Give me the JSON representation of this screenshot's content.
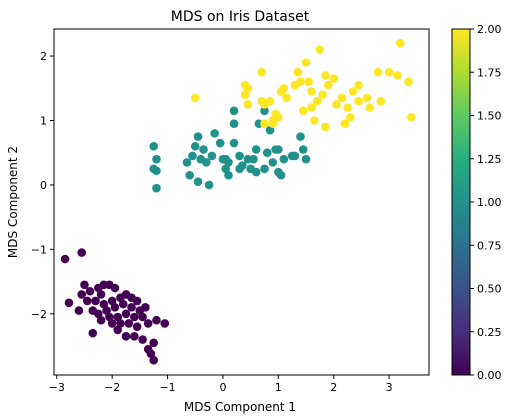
{
  "chart_data": {
    "type": "scatter",
    "title": "MDS on Iris Dataset",
    "xlabel": "MDS Component 1",
    "ylabel": "MDS Component 2",
    "xlim": [
      -3.05,
      3.72
    ],
    "ylim": [
      -2.95,
      2.42
    ],
    "xticks": [
      -3,
      -2,
      -1,
      0,
      1,
      2,
      3
    ],
    "xtick_labels": [
      "−3",
      "−2",
      "−1",
      "0",
      "1",
      "2",
      "3"
    ],
    "yticks": [
      -2,
      -1,
      0,
      1,
      2
    ],
    "ytick_labels": [
      "−2",
      "−1",
      "0",
      "1",
      "2"
    ],
    "grid": false,
    "colormap": "viridis",
    "colorbar": {
      "min": 0.0,
      "max": 2.0,
      "ticks": [
        0.0,
        0.25,
        0.5,
        0.75,
        1.0,
        1.25,
        1.5,
        1.75,
        2.0
      ],
      "tick_labels": [
        "0.00",
        "0.25",
        "0.50",
        "0.75",
        "1.00",
        "1.25",
        "1.50",
        "1.75",
        "2.00"
      ]
    },
    "series": [
      {
        "value": 0,
        "color": "#440154",
        "points": [
          [
            -2.85,
            -1.15
          ],
          [
            -2.55,
            -1.05
          ],
          [
            -2.78,
            -1.83
          ],
          [
            -2.5,
            -1.55
          ],
          [
            -2.55,
            -1.7
          ],
          [
            -2.45,
            -1.8
          ],
          [
            -2.25,
            -1.6
          ],
          [
            -2.2,
            -1.7
          ],
          [
            -2.05,
            -1.55
          ],
          [
            -1.95,
            -1.6
          ],
          [
            -1.75,
            -1.7
          ],
          [
            -1.65,
            -1.75
          ],
          [
            -2.3,
            -1.8
          ],
          [
            -2.15,
            -1.85
          ],
          [
            -2.0,
            -1.8
          ],
          [
            -1.85,
            -1.75
          ],
          [
            -2.35,
            -1.95
          ],
          [
            -2.25,
            -2.0
          ],
          [
            -2.1,
            -1.95
          ],
          [
            -1.95,
            -1.9
          ],
          [
            -1.8,
            -1.85
          ],
          [
            -1.55,
            -1.8
          ],
          [
            -1.5,
            -1.95
          ],
          [
            -1.4,
            -1.9
          ],
          [
            -2.05,
            -2.05
          ],
          [
            -1.9,
            -2.05
          ],
          [
            -1.75,
            -2.0
          ],
          [
            -1.6,
            -2.05
          ],
          [
            -1.45,
            -2.05
          ],
          [
            -2.2,
            -2.1
          ],
          [
            -2.0,
            -2.15
          ],
          [
            -1.85,
            -2.15
          ],
          [
            -1.7,
            -2.15
          ],
          [
            -1.55,
            -2.2
          ],
          [
            -1.35,
            -2.15
          ],
          [
            -1.2,
            -2.1
          ],
          [
            -1.05,
            -2.15
          ],
          [
            -1.75,
            -2.35
          ],
          [
            -1.6,
            -2.35
          ],
          [
            -1.45,
            -2.4
          ],
          [
            -2.35,
            -2.3
          ],
          [
            -1.35,
            -2.55
          ],
          [
            -1.3,
            -2.62
          ],
          [
            -1.25,
            -2.72
          ],
          [
            -2.6,
            -1.95
          ],
          [
            -2.4,
            -1.65
          ],
          [
            -1.9,
            -2.25
          ],
          [
            -1.65,
            -1.9
          ],
          [
            -2.15,
            -1.55
          ],
          [
            -1.25,
            -2.45
          ]
        ]
      },
      {
        "value": 1,
        "color": "#21918c",
        "points": [
          [
            -1.25,
            0.6
          ],
          [
            -1.2,
            0.4
          ],
          [
            -1.25,
            0.25
          ],
          [
            -1.2,
            0.22
          ],
          [
            -1.2,
            -0.05
          ],
          [
            -0.65,
            0.35
          ],
          [
            -0.55,
            0.45
          ],
          [
            -0.5,
            0.6
          ],
          [
            -0.45,
            0.75
          ],
          [
            -0.35,
            0.55
          ],
          [
            -0.4,
            0.4
          ],
          [
            -0.2,
            0.45
          ],
          [
            -0.15,
            0.8
          ],
          [
            -0.05,
            0.65
          ],
          [
            0.05,
            0.4
          ],
          [
            0.1,
            0.35
          ],
          [
            0.2,
            0.65
          ],
          [
            0.2,
            0.95
          ],
          [
            0.2,
            1.15
          ],
          [
            0.3,
            0.45
          ],
          [
            0.45,
            0.4
          ],
          [
            0.55,
            0.4
          ],
          [
            0.6,
            0.55
          ],
          [
            0.65,
            0.95
          ],
          [
            0.75,
            1.15
          ],
          [
            0.8,
            0.5
          ],
          [
            0.9,
            0.35
          ],
          [
            1.0,
            0.55
          ],
          [
            1.1,
            0.4
          ],
          [
            1.25,
            0.45
          ],
          [
            1.3,
            0.45
          ],
          [
            1.45,
            0.55
          ],
          [
            1.5,
            0.4
          ],
          [
            1.4,
            0.75
          ],
          [
            -0.45,
            0.05
          ],
          [
            -0.25,
            0.0
          ],
          [
            0.05,
            0.25
          ],
          [
            0.3,
            0.25
          ],
          [
            0.5,
            0.25
          ],
          [
            0.75,
            0.25
          ],
          [
            1.0,
            0.2
          ],
          [
            1.05,
            0.15
          ],
          [
            0.1,
            0.15
          ],
          [
            -0.6,
            0.15
          ],
          [
            -0.3,
            0.35
          ],
          [
            0.0,
            0.4
          ],
          [
            0.35,
            0.3
          ],
          [
            0.95,
            0.55
          ],
          [
            0.6,
            0.2
          ],
          [
            0.85,
            0.85
          ]
        ]
      },
      {
        "value": 2,
        "color": "#fde725",
        "points": [
          [
            -0.5,
            1.35
          ],
          [
            0.4,
            1.4
          ],
          [
            0.45,
            1.5
          ],
          [
            0.45,
            1.25
          ],
          [
            0.7,
            1.3
          ],
          [
            0.75,
            1.25
          ],
          [
            0.85,
            1.3
          ],
          [
            0.9,
            1.0
          ],
          [
            0.75,
            0.95
          ],
          [
            0.9,
            0.95
          ],
          [
            1.0,
            1.05
          ],
          [
            1.05,
            1.45
          ],
          [
            1.1,
            1.5
          ],
          [
            1.15,
            1.35
          ],
          [
            0.7,
            1.75
          ],
          [
            0.4,
            1.55
          ],
          [
            0.95,
            1.1
          ],
          [
            1.3,
            1.55
          ],
          [
            1.35,
            1.75
          ],
          [
            1.4,
            1.6
          ],
          [
            1.5,
            1.9
          ],
          [
            1.55,
            1.6
          ],
          [
            1.6,
            1.45
          ],
          [
            1.6,
            1.2
          ],
          [
            1.65,
            1.0
          ],
          [
            1.7,
            1.3
          ],
          [
            1.8,
            1.4
          ],
          [
            1.85,
            1.7
          ],
          [
            1.9,
            1.55
          ],
          [
            2.0,
            1.65
          ],
          [
            2.05,
            1.25
          ],
          [
            2.15,
            1.35
          ],
          [
            2.25,
            1.2
          ],
          [
            2.3,
            1.05
          ],
          [
            2.35,
            1.45
          ],
          [
            2.45,
            1.3
          ],
          [
            2.6,
            1.35
          ],
          [
            2.65,
            1.2
          ],
          [
            2.85,
            1.3
          ],
          [
            3.0,
            1.75
          ],
          [
            3.15,
            1.7
          ],
          [
            3.2,
            2.2
          ],
          [
            3.35,
            1.6
          ],
          [
            3.4,
            1.05
          ],
          [
            2.45,
            1.55
          ],
          [
            1.75,
            2.1
          ],
          [
            2.8,
            1.75
          ],
          [
            2.2,
            0.95
          ],
          [
            1.85,
            0.9
          ],
          [
            1.45,
            1.15
          ]
        ]
      }
    ]
  }
}
